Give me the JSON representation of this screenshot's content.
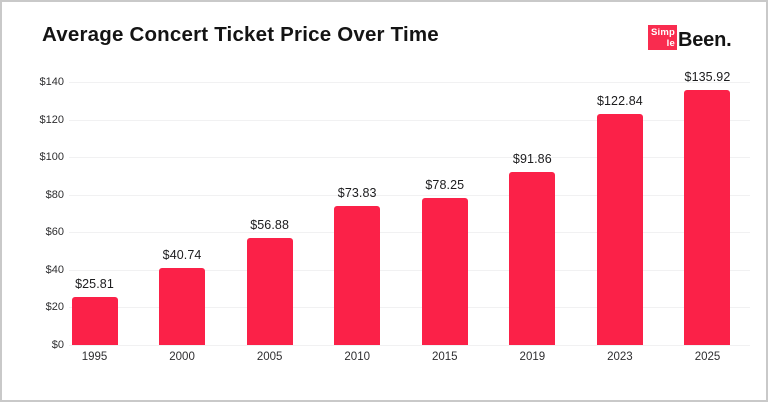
{
  "frame": {
    "background": "#ffffff",
    "border_color": "#c9c9c9"
  },
  "header": {
    "title": "Average Concert Ticket Price Over Time",
    "logo": {
      "box_line1": "Simp",
      "box_line2": "le",
      "suffix": "Been.",
      "box_color": "#f92c4f",
      "suffix_color": "#141414"
    }
  },
  "chart_data": {
    "type": "bar",
    "title": "Average Concert Ticket Price Over Time",
    "categories": [
      "1995",
      "2000",
      "2005",
      "2010",
      "2015",
      "2019",
      "2023",
      "2025"
    ],
    "values": [
      25.81,
      40.74,
      56.88,
      73.83,
      78.25,
      91.86,
      122.84,
      135.92
    ],
    "value_labels": [
      "$25.81",
      "$40.74",
      "$56.88",
      "$73.83",
      "$78.25",
      "$91.86",
      "$122.84",
      "$135.92"
    ],
    "yticks": [
      {
        "value": 0,
        "label": "$0"
      },
      {
        "value": 20,
        "label": "$20"
      },
      {
        "value": 40,
        "label": "$40"
      },
      {
        "value": 60,
        "label": "$60"
      },
      {
        "value": 80,
        "label": "$80"
      },
      {
        "value": 100,
        "label": "$100"
      },
      {
        "value": 120,
        "label": "$120"
      },
      {
        "value": 140,
        "label": "$140"
      }
    ],
    "ylim": [
      0,
      140
    ],
    "xlabel": "",
    "ylabel": "",
    "grid": true,
    "legend_position": "none",
    "bar_color": "#fb2148",
    "gridline_color": "#f1f1f2",
    "axis_text_color": "#2e2e30",
    "value_label_color": "#1c1c1e"
  }
}
